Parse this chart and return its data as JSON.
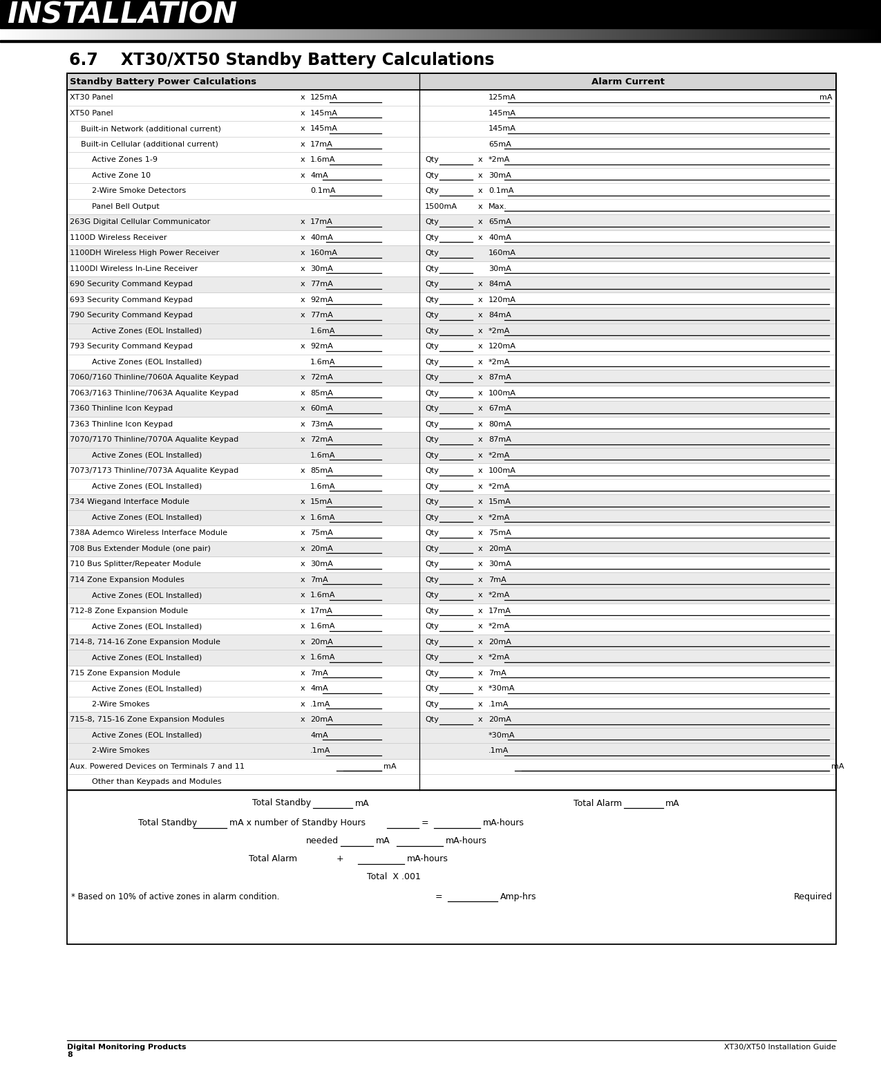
{
  "title": "6.7    XT30/XT50 Standby Battery Calculations",
  "header_left": "Standby Battery Power Calculations",
  "header_right": "Alarm Current",
  "footer_left": "Digital Monitoring Products",
  "footer_right": "XT30/XT50 Installation Guide",
  "footer_page": "8",
  "rows": [
    {
      "label": "XT30 Panel",
      "ind": 0,
      "lx": "x",
      "lval": "125mA",
      "lb": true,
      "rprefix": "",
      "rqty": false,
      "rx": "",
      "rval": "125mA",
      "rb": true,
      "rmA": true,
      "alt": false
    },
    {
      "label": "XT50 Panel",
      "ind": 0,
      "lx": "x",
      "lval": "145mA",
      "lb": true,
      "rprefix": "",
      "rqty": false,
      "rx": "",
      "rval": "145mA",
      "rb": true,
      "rmA": false,
      "alt": false
    },
    {
      "label": "Built-in Network (additional current)",
      "ind": 1,
      "lx": "x",
      "lval": "145mA",
      "lb": true,
      "rprefix": "",
      "rqty": false,
      "rx": "",
      "rval": "145mA",
      "rb": true,
      "rmA": false,
      "alt": false
    },
    {
      "label": "Built-in Cellular (additional current)",
      "ind": 1,
      "lx": "x",
      "lval": "17mA",
      "lb": true,
      "rprefix": "",
      "rqty": false,
      "rx": "",
      "rval": "65mA",
      "rb": true,
      "rmA": false,
      "alt": false
    },
    {
      "label": "Active Zones 1-9",
      "ind": 2,
      "lx": "x",
      "lval": "1.6mA",
      "lb": true,
      "rprefix": "",
      "rqty": true,
      "rx": "x",
      "rval": "*2mA",
      "rb": true,
      "rmA": false,
      "alt": false
    },
    {
      "label": "Active Zone 10",
      "ind": 2,
      "lx": "x",
      "lval": "4mA",
      "lb": true,
      "rprefix": "",
      "rqty": true,
      "rx": "x",
      "rval": "30mA",
      "rb": true,
      "rmA": false,
      "alt": false
    },
    {
      "label": "2-Wire Smoke Detectors",
      "ind": 2,
      "lx": "",
      "lval": "0.1mA",
      "lb": true,
      "rprefix": "",
      "rqty": true,
      "rx": "x",
      "rval": "0.1mA",
      "rb": true,
      "rmA": false,
      "alt": false
    },
    {
      "label": "Panel Bell Output",
      "ind": 2,
      "lx": "",
      "lval": "",
      "lb": false,
      "rprefix": "1500mA",
      "rqty": false,
      "rx": "x",
      "rval": "Max.",
      "rb": true,
      "rmA": false,
      "alt": false
    },
    {
      "label": "263G Digital Cellular Communicator",
      "ind": 0,
      "lx": "x",
      "lval": "17mA",
      "lb": true,
      "rprefix": "",
      "rqty": true,
      "rx": "x",
      "rval": "65mA",
      "rb": true,
      "rmA": false,
      "alt": true
    },
    {
      "label": "1100D Wireless Receiver",
      "ind": 0,
      "lx": "x",
      "lval": "40mA",
      "lb": true,
      "rprefix": "",
      "rqty": true,
      "rx": "x",
      "rval": "40mA",
      "rb": true,
      "rmA": false,
      "alt": false
    },
    {
      "label": "1100DH Wireless High Power Receiver",
      "ind": 0,
      "lx": "x",
      "lval": "160mA",
      "lb": true,
      "rprefix": "",
      "rqty": true,
      "rx": "",
      "rval": "160mA",
      "rb": true,
      "rmA": false,
      "alt": true
    },
    {
      "label": "1100DI Wireless In-Line Receiver",
      "ind": 0,
      "lx": "x",
      "lval": "30mA",
      "lb": true,
      "rprefix": "",
      "rqty": true,
      "rx": "",
      "rval": "30mA",
      "rb": true,
      "rmA": false,
      "alt": false
    },
    {
      "label": "690 Security Command Keypad",
      "ind": 0,
      "lx": "x",
      "lval": "77mA",
      "lb": true,
      "rprefix": "",
      "rqty": true,
      "rx": "x",
      "rval": "84mA",
      "rb": true,
      "rmA": false,
      "alt": true
    },
    {
      "label": "693 Security Command Keypad",
      "ind": 0,
      "lx": "x",
      "lval": "92mA",
      "lb": true,
      "rprefix": "",
      "rqty": true,
      "rx": "x",
      "rval": "120mA",
      "rb": true,
      "rmA": false,
      "alt": false
    },
    {
      "label": "790 Security Command Keypad",
      "ind": 0,
      "lx": "x",
      "lval": "77mA",
      "lb": true,
      "rprefix": "",
      "rqty": true,
      "rx": "x",
      "rval": "84mA",
      "rb": true,
      "rmA": false,
      "alt": true
    },
    {
      "label": "Active Zones (EOL Installed)",
      "ind": 2,
      "lx": "",
      "lval": "1.6mA",
      "lb": true,
      "rprefix": "",
      "rqty": true,
      "rx": "x",
      "rval": "*2mA",
      "rb": true,
      "rmA": false,
      "alt": true
    },
    {
      "label": "793 Security Command Keypad",
      "ind": 0,
      "lx": "x",
      "lval": "92mA",
      "lb": true,
      "rprefix": "",
      "rqty": true,
      "rx": "x",
      "rval": "120mA",
      "rb": true,
      "rmA": false,
      "alt": false
    },
    {
      "label": "Active Zones (EOL Installed)",
      "ind": 2,
      "lx": "",
      "lval": "1.6mA",
      "lb": true,
      "rprefix": "",
      "rqty": true,
      "rx": "x",
      "rval": "*2mA",
      "rb": true,
      "rmA": false,
      "alt": false
    },
    {
      "label": "7060/7160 Thinline/7060A Aqualite Keypad",
      "ind": 0,
      "lx": "x",
      "lval": "72mA",
      "lb": true,
      "rprefix": "",
      "rqty": true,
      "rx": "x",
      "rval": "87mA",
      "rb": true,
      "rmA": false,
      "alt": true
    },
    {
      "label": "7063/7163 Thinline/7063A Aqualite Keypad",
      "ind": 0,
      "lx": "x",
      "lval": "85mA",
      "lb": true,
      "rprefix": "",
      "rqty": true,
      "rx": "x",
      "rval": "100mA",
      "rb": true,
      "rmA": false,
      "alt": false
    },
    {
      "label": "7360 Thinline Icon Keypad",
      "ind": 0,
      "lx": "x",
      "lval": "60mA",
      "lb": true,
      "rprefix": "",
      "rqty": true,
      "rx": "x",
      "rval": "67mA",
      "rb": true,
      "rmA": false,
      "alt": true
    },
    {
      "label": "7363 Thinline Icon Keypad",
      "ind": 0,
      "lx": "x",
      "lval": "73mA",
      "lb": true,
      "rprefix": "",
      "rqty": true,
      "rx": "x",
      "rval": "80mA",
      "rb": true,
      "rmA": false,
      "alt": false
    },
    {
      "label": "7070/7170 Thinline/7070A Aqualite Keypad",
      "ind": 0,
      "lx": "x",
      "lval": "72mA",
      "lb": true,
      "rprefix": "",
      "rqty": true,
      "rx": "x",
      "rval": "87mA",
      "rb": true,
      "rmA": false,
      "alt": true
    },
    {
      "label": "Active Zones (EOL Installed)",
      "ind": 2,
      "lx": "",
      "lval": "1.6mA",
      "lb": true,
      "rprefix": "",
      "rqty": true,
      "rx": "x",
      "rval": "*2mA",
      "rb": true,
      "rmA": false,
      "alt": true
    },
    {
      "label": "7073/7173 Thinline/7073A Aqualite Keypad",
      "ind": 0,
      "lx": "x",
      "lval": "85mA",
      "lb": true,
      "rprefix": "",
      "rqty": true,
      "rx": "x",
      "rval": "100mA",
      "rb": true,
      "rmA": false,
      "alt": false
    },
    {
      "label": "Active Zones (EOL Installed)",
      "ind": 2,
      "lx": "",
      "lval": "1.6mA",
      "lb": true,
      "rprefix": "",
      "rqty": true,
      "rx": "x",
      "rval": "*2mA",
      "rb": true,
      "rmA": false,
      "alt": false
    },
    {
      "label": "734 Wiegand Interface Module",
      "ind": 0,
      "lx": "x",
      "lval": "15mA",
      "lb": true,
      "rprefix": "",
      "rqty": true,
      "rx": "x",
      "rval": "15mA",
      "rb": true,
      "rmA": false,
      "alt": true
    },
    {
      "label": "Active Zones (EOL Installed)",
      "ind": 2,
      "lx": "x",
      "lval": "1.6mA",
      "lb": true,
      "rprefix": "",
      "rqty": true,
      "rx": "x",
      "rval": "*2mA",
      "rb": true,
      "rmA": false,
      "alt": true
    },
    {
      "label": "738A Ademco Wireless Interface Module",
      "ind": 0,
      "lx": "x",
      "lval": "75mA",
      "lb": true,
      "rprefix": "",
      "rqty": true,
      "rx": "x",
      "rval": "75mA",
      "rb": true,
      "rmA": false,
      "alt": false
    },
    {
      "label": "708 Bus Extender Module (one pair)",
      "ind": 0,
      "lx": "x",
      "lval": "20mA",
      "lb": true,
      "rprefix": "",
      "rqty": true,
      "rx": "x",
      "rval": "20mA",
      "rb": true,
      "rmA": false,
      "alt": true
    },
    {
      "label": "710 Bus Splitter/Repeater Module",
      "ind": 0,
      "lx": "x",
      "lval": "30mA",
      "lb": true,
      "rprefix": "",
      "rqty": true,
      "rx": "x",
      "rval": "30mA",
      "rb": true,
      "rmA": false,
      "alt": false
    },
    {
      "label": "714 Zone Expansion Modules",
      "ind": 0,
      "lx": "x",
      "lval": "7mA",
      "lb": true,
      "rprefix": "",
      "rqty": true,
      "rx": "x",
      "rval": "7mA",
      "rb": true,
      "rmA": false,
      "alt": true
    },
    {
      "label": "Active Zones (EOL Installed)",
      "ind": 2,
      "lx": "x",
      "lval": "1.6mA",
      "lb": true,
      "rprefix": "",
      "rqty": true,
      "rx": "x",
      "rval": "*2mA",
      "rb": true,
      "rmA": false,
      "alt": true
    },
    {
      "label": "712-8 Zone Expansion Module",
      "ind": 0,
      "lx": "x",
      "lval": "17mA",
      "lb": true,
      "rprefix": "",
      "rqty": true,
      "rx": "x",
      "rval": "17mA",
      "rb": true,
      "rmA": false,
      "alt": false
    },
    {
      "label": "Active Zones (EOL Installed)",
      "ind": 2,
      "lx": "x",
      "lval": "1.6mA",
      "lb": true,
      "rprefix": "",
      "rqty": true,
      "rx": "x",
      "rval": "*2mA",
      "rb": true,
      "rmA": false,
      "alt": false
    },
    {
      "label": "714-8, 714-16 Zone Expansion Module",
      "ind": 0,
      "lx": "x",
      "lval": "20mA",
      "lb": true,
      "rprefix": "",
      "rqty": true,
      "rx": "x",
      "rval": "20mA",
      "rb": true,
      "rmA": false,
      "alt": true
    },
    {
      "label": "Active Zones (EOL Installed)",
      "ind": 2,
      "lx": "x",
      "lval": "1.6mA",
      "lb": true,
      "rprefix": "",
      "rqty": true,
      "rx": "x",
      "rval": "*2mA",
      "rb": true,
      "rmA": false,
      "alt": true
    },
    {
      "label": "715 Zone Expansion Module",
      "ind": 0,
      "lx": "x",
      "lval": "7mA",
      "lb": true,
      "rprefix": "",
      "rqty": true,
      "rx": "x",
      "rval": "7mA",
      "rb": true,
      "rmA": false,
      "alt": false
    },
    {
      "label": "Active Zones (EOL Installed)",
      "ind": 2,
      "lx": "x",
      "lval": "4mA",
      "lb": true,
      "rprefix": "",
      "rqty": true,
      "rx": "x",
      "rval": "*30mA",
      "rb": true,
      "rmA": false,
      "alt": false
    },
    {
      "label": "2-Wire Smokes",
      "ind": 2,
      "lx": "x",
      "lval": ".1mA",
      "lb": true,
      "rprefix": "",
      "rqty": true,
      "rx": "x",
      "rval": ".1mA",
      "rb": true,
      "rmA": false,
      "alt": false
    },
    {
      "label": "715-8, 715-16 Zone Expansion Modules",
      "ind": 0,
      "lx": "x",
      "lval": "20mA",
      "lb": true,
      "rprefix": "",
      "rqty": true,
      "rx": "x",
      "rval": "20mA",
      "rb": true,
      "rmA": false,
      "alt": true
    },
    {
      "label": "Active Zones (EOL Installed)",
      "ind": 2,
      "lx": "",
      "lval": "4mA",
      "lb": true,
      "rprefix": "",
      "rqty": false,
      "rx": "",
      "rval": "*30mA",
      "rb": true,
      "rmA": false,
      "alt": true
    },
    {
      "label": "2-Wire Smokes",
      "ind": 2,
      "lx": "",
      "lval": ".1mA",
      "lb": true,
      "rprefix": "",
      "rqty": false,
      "rx": "",
      "rval": ".1mA",
      "rb": true,
      "rmA": false,
      "alt": true
    },
    {
      "label": "Aux. Powered Devices on Terminals 7 and 11",
      "ind": 0,
      "lx": "",
      "lval": "",
      "lb": true,
      "rprefix": "",
      "rqty": false,
      "rx": "",
      "rval": "",
      "rb": true,
      "rmA": false,
      "alt": false,
      "tworow": true
    },
    {
      "label": "Other than Keypads and Modules",
      "ind": 2,
      "lx": "",
      "lval": "",
      "lb": false,
      "rprefix": "",
      "rqty": false,
      "rx": "",
      "rval": "",
      "rb": false,
      "rmA": false,
      "alt": false,
      "cont": true
    }
  ]
}
